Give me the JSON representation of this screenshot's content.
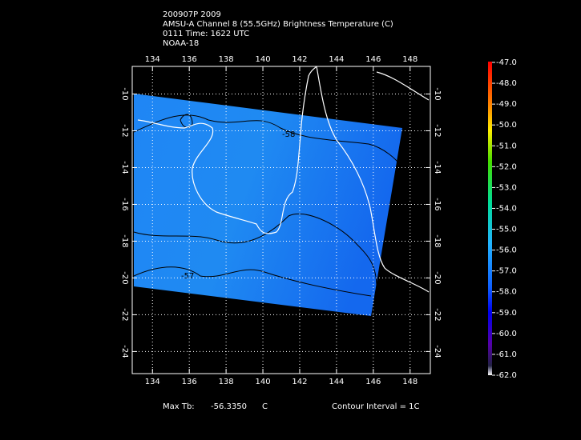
{
  "header": {
    "lines": [
      "200907P 2009",
      "AMSU-A Channel 8 (55.5GHz) Brightness Temperature (C)",
      "0111 Time: 1622 UTC",
      "NOAA-18"
    ]
  },
  "map": {
    "xlim": [
      132.9,
      149.1
    ],
    "ylim": [
      -25.2,
      -8.5
    ],
    "xticks": [
      134,
      136,
      138,
      140,
      142,
      144,
      146,
      148
    ],
    "yticks": [
      -10,
      -12,
      -14,
      -16,
      -18,
      -20,
      -22,
      -24
    ],
    "grid": true,
    "contour_labels": [
      "-58",
      "-57"
    ]
  },
  "colorbar": {
    "lim": [
      -62,
      -47
    ],
    "ticks": [
      {
        "value": -47,
        "label": "-47.0"
      },
      {
        "value": -48,
        "label": "-48.0"
      },
      {
        "value": -49,
        "label": "-49.0"
      },
      {
        "value": -50,
        "label": "-50.0"
      },
      {
        "value": -51,
        "label": "-51.0"
      },
      {
        "value": -52,
        "label": "-52.0"
      },
      {
        "value": -53,
        "label": "-53.0"
      },
      {
        "value": -54,
        "label": "-54.0"
      },
      {
        "value": -55,
        "label": "-55.0"
      },
      {
        "value": -56,
        "label": "-56.0"
      },
      {
        "value": -57,
        "label": "-57.0"
      },
      {
        "value": -58,
        "label": "-58.0"
      },
      {
        "value": -59,
        "label": "-59.0"
      },
      {
        "value": -60,
        "label": "-60.0"
      },
      {
        "value": -61,
        "label": "-61.0"
      },
      {
        "value": -62,
        "label": "-62.0"
      }
    ]
  },
  "footer": {
    "max_label": "Max Tb:",
    "max_value": "-56.3350",
    "max_unit": "C",
    "contour_interval": "Contour Interval = 1C"
  }
}
